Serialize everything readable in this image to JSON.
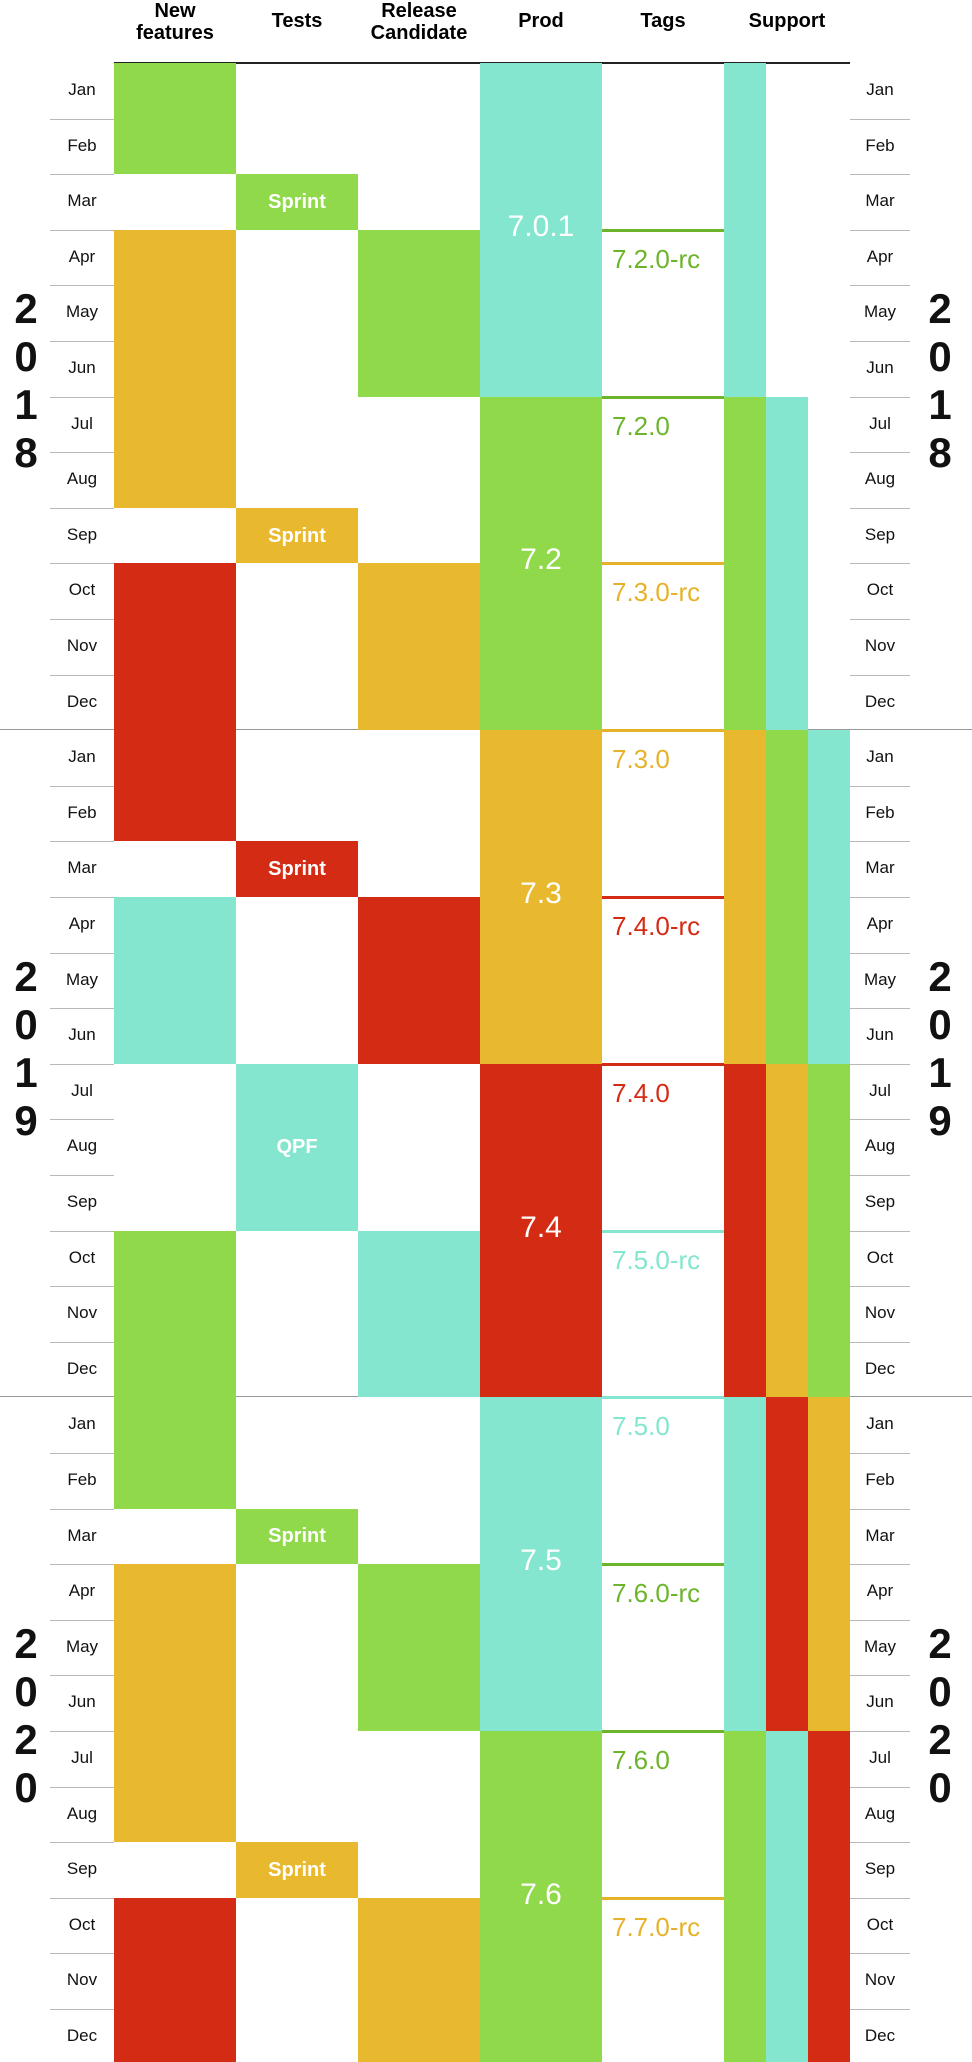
{
  "colors": {
    "green": "#8fd94a",
    "orange": "#e8b82e",
    "red": "#d42b14",
    "cyan": "#84e6cf",
    "tag_green": "#6cb52a",
    "tag_orange": "#e6b22b",
    "tag_red": "#d32b14",
    "tag_cyan": "#84e6cf"
  },
  "headers": {
    "new_features": "New\nfeatures",
    "tests": "Tests",
    "release_candidate": "Release\nCandidate",
    "prod": "Prod",
    "tags": "Tags",
    "support": "Support"
  },
  "months": [
    "Jan",
    "Feb",
    "Mar",
    "Apr",
    "May",
    "Jun",
    "Jul",
    "Aug",
    "Sep",
    "Oct",
    "Nov",
    "Dec"
  ],
  "years": [
    "2018",
    "2019",
    "2020"
  ],
  "new_features": [
    {
      "start": 0,
      "end": 2,
      "color": "green"
    },
    {
      "start": 3,
      "end": 8,
      "color": "orange"
    },
    {
      "start": 9,
      "end": 14,
      "color": "red"
    },
    {
      "start": 15,
      "end": 18,
      "color": "cyan"
    },
    {
      "start": 21,
      "end": 26,
      "color": "green"
    },
    {
      "start": 27,
      "end": 32,
      "color": "orange"
    },
    {
      "start": 33,
      "end": 36.5,
      "color": "red"
    }
  ],
  "tests": [
    {
      "start": 2,
      "end": 3,
      "color": "green",
      "label": "Sprint"
    },
    {
      "start": 8,
      "end": 9,
      "color": "orange",
      "label": "Sprint"
    },
    {
      "start": 14,
      "end": 15,
      "color": "red",
      "label": "Sprint"
    },
    {
      "start": 18,
      "end": 21,
      "color": "cyan",
      "label": "QPF"
    },
    {
      "start": 26,
      "end": 27,
      "color": "green",
      "label": "Sprint"
    },
    {
      "start": 32,
      "end": 33,
      "color": "orange",
      "label": "Sprint"
    }
  ],
  "release_candidate": [
    {
      "start": 3,
      "end": 6,
      "color": "green"
    },
    {
      "start": 9,
      "end": 12,
      "color": "orange"
    },
    {
      "start": 15,
      "end": 18,
      "color": "red"
    },
    {
      "start": 21,
      "end": 24,
      "color": "cyan"
    },
    {
      "start": 27,
      "end": 30,
      "color": "green"
    },
    {
      "start": 33,
      "end": 36,
      "color": "orange"
    }
  ],
  "prod": [
    {
      "start": 0,
      "end": 6,
      "color": "cyan",
      "label": "7.0.1"
    },
    {
      "start": 6,
      "end": 12,
      "color": "green",
      "label": "7.2"
    },
    {
      "start": 12,
      "end": 18,
      "color": "orange",
      "label": "7.3"
    },
    {
      "start": 18,
      "end": 24,
      "color": "red",
      "label": "7.4"
    },
    {
      "start": 24,
      "end": 30,
      "color": "cyan",
      "label": "7.5"
    },
    {
      "start": 30,
      "end": 36,
      "color": "green",
      "label": "7.6"
    },
    {
      "start": 36,
      "end": 36.5,
      "color": "orange",
      "label": ""
    }
  ],
  "tags": [
    {
      "at": 3,
      "color": "tag_green",
      "label": "7.2.0-rc"
    },
    {
      "at": 6,
      "color": "tag_green",
      "label": "7.2.0"
    },
    {
      "at": 9,
      "color": "tag_orange",
      "label": "7.3.0-rc"
    },
    {
      "at": 12,
      "color": "tag_orange",
      "label": "7.3.0"
    },
    {
      "at": 15,
      "color": "tag_red",
      "label": "7.4.0-rc"
    },
    {
      "at": 18,
      "color": "tag_red",
      "label": "7.4.0"
    },
    {
      "at": 21,
      "color": "tag_cyan",
      "label": "7.5.0-rc"
    },
    {
      "at": 24,
      "color": "tag_cyan",
      "label": "7.5.0"
    },
    {
      "at": 27,
      "color": "tag_green",
      "label": "7.6.0-rc"
    },
    {
      "at": 30,
      "color": "tag_green",
      "label": "7.6.0"
    },
    {
      "at": 33,
      "color": "tag_orange",
      "label": "7.7.0-rc"
    },
    {
      "at": 36,
      "color": "tag_orange",
      "label": ""
    }
  ],
  "support": [
    {
      "lane": 0,
      "start": 0,
      "end": 6,
      "color": "cyan"
    },
    {
      "lane": 0,
      "start": 6,
      "end": 12,
      "color": "green"
    },
    {
      "lane": 0,
      "start": 12,
      "end": 18,
      "color": "orange"
    },
    {
      "lane": 0,
      "start": 18,
      "end": 24,
      "color": "red"
    },
    {
      "lane": 0,
      "start": 24,
      "end": 30,
      "color": "cyan"
    },
    {
      "lane": 0,
      "start": 30,
      "end": 36,
      "color": "green"
    },
    {
      "lane": 0,
      "start": 36,
      "end": 36.5,
      "color": "orange"
    },
    {
      "lane": 1,
      "start": 6,
      "end": 12,
      "color": "cyan"
    },
    {
      "lane": 1,
      "start": 12,
      "end": 18,
      "color": "green"
    },
    {
      "lane": 1,
      "start": 18,
      "end": 24,
      "color": "orange"
    },
    {
      "lane": 1,
      "start": 24,
      "end": 30,
      "color": "red"
    },
    {
      "lane": 1,
      "start": 30,
      "end": 36,
      "color": "cyan"
    },
    {
      "lane": 1,
      "start": 36,
      "end": 36.5,
      "color": "green"
    },
    {
      "lane": 2,
      "start": 12,
      "end": 18,
      "color": "cyan"
    },
    {
      "lane": 2,
      "start": 18,
      "end": 24,
      "color": "green"
    },
    {
      "lane": 2,
      "start": 24,
      "end": 30,
      "color": "orange"
    },
    {
      "lane": 2,
      "start": 30,
      "end": 36,
      "color": "red"
    },
    {
      "lane": 2,
      "start": 36,
      "end": 36.5,
      "color": "cyan"
    }
  ]
}
